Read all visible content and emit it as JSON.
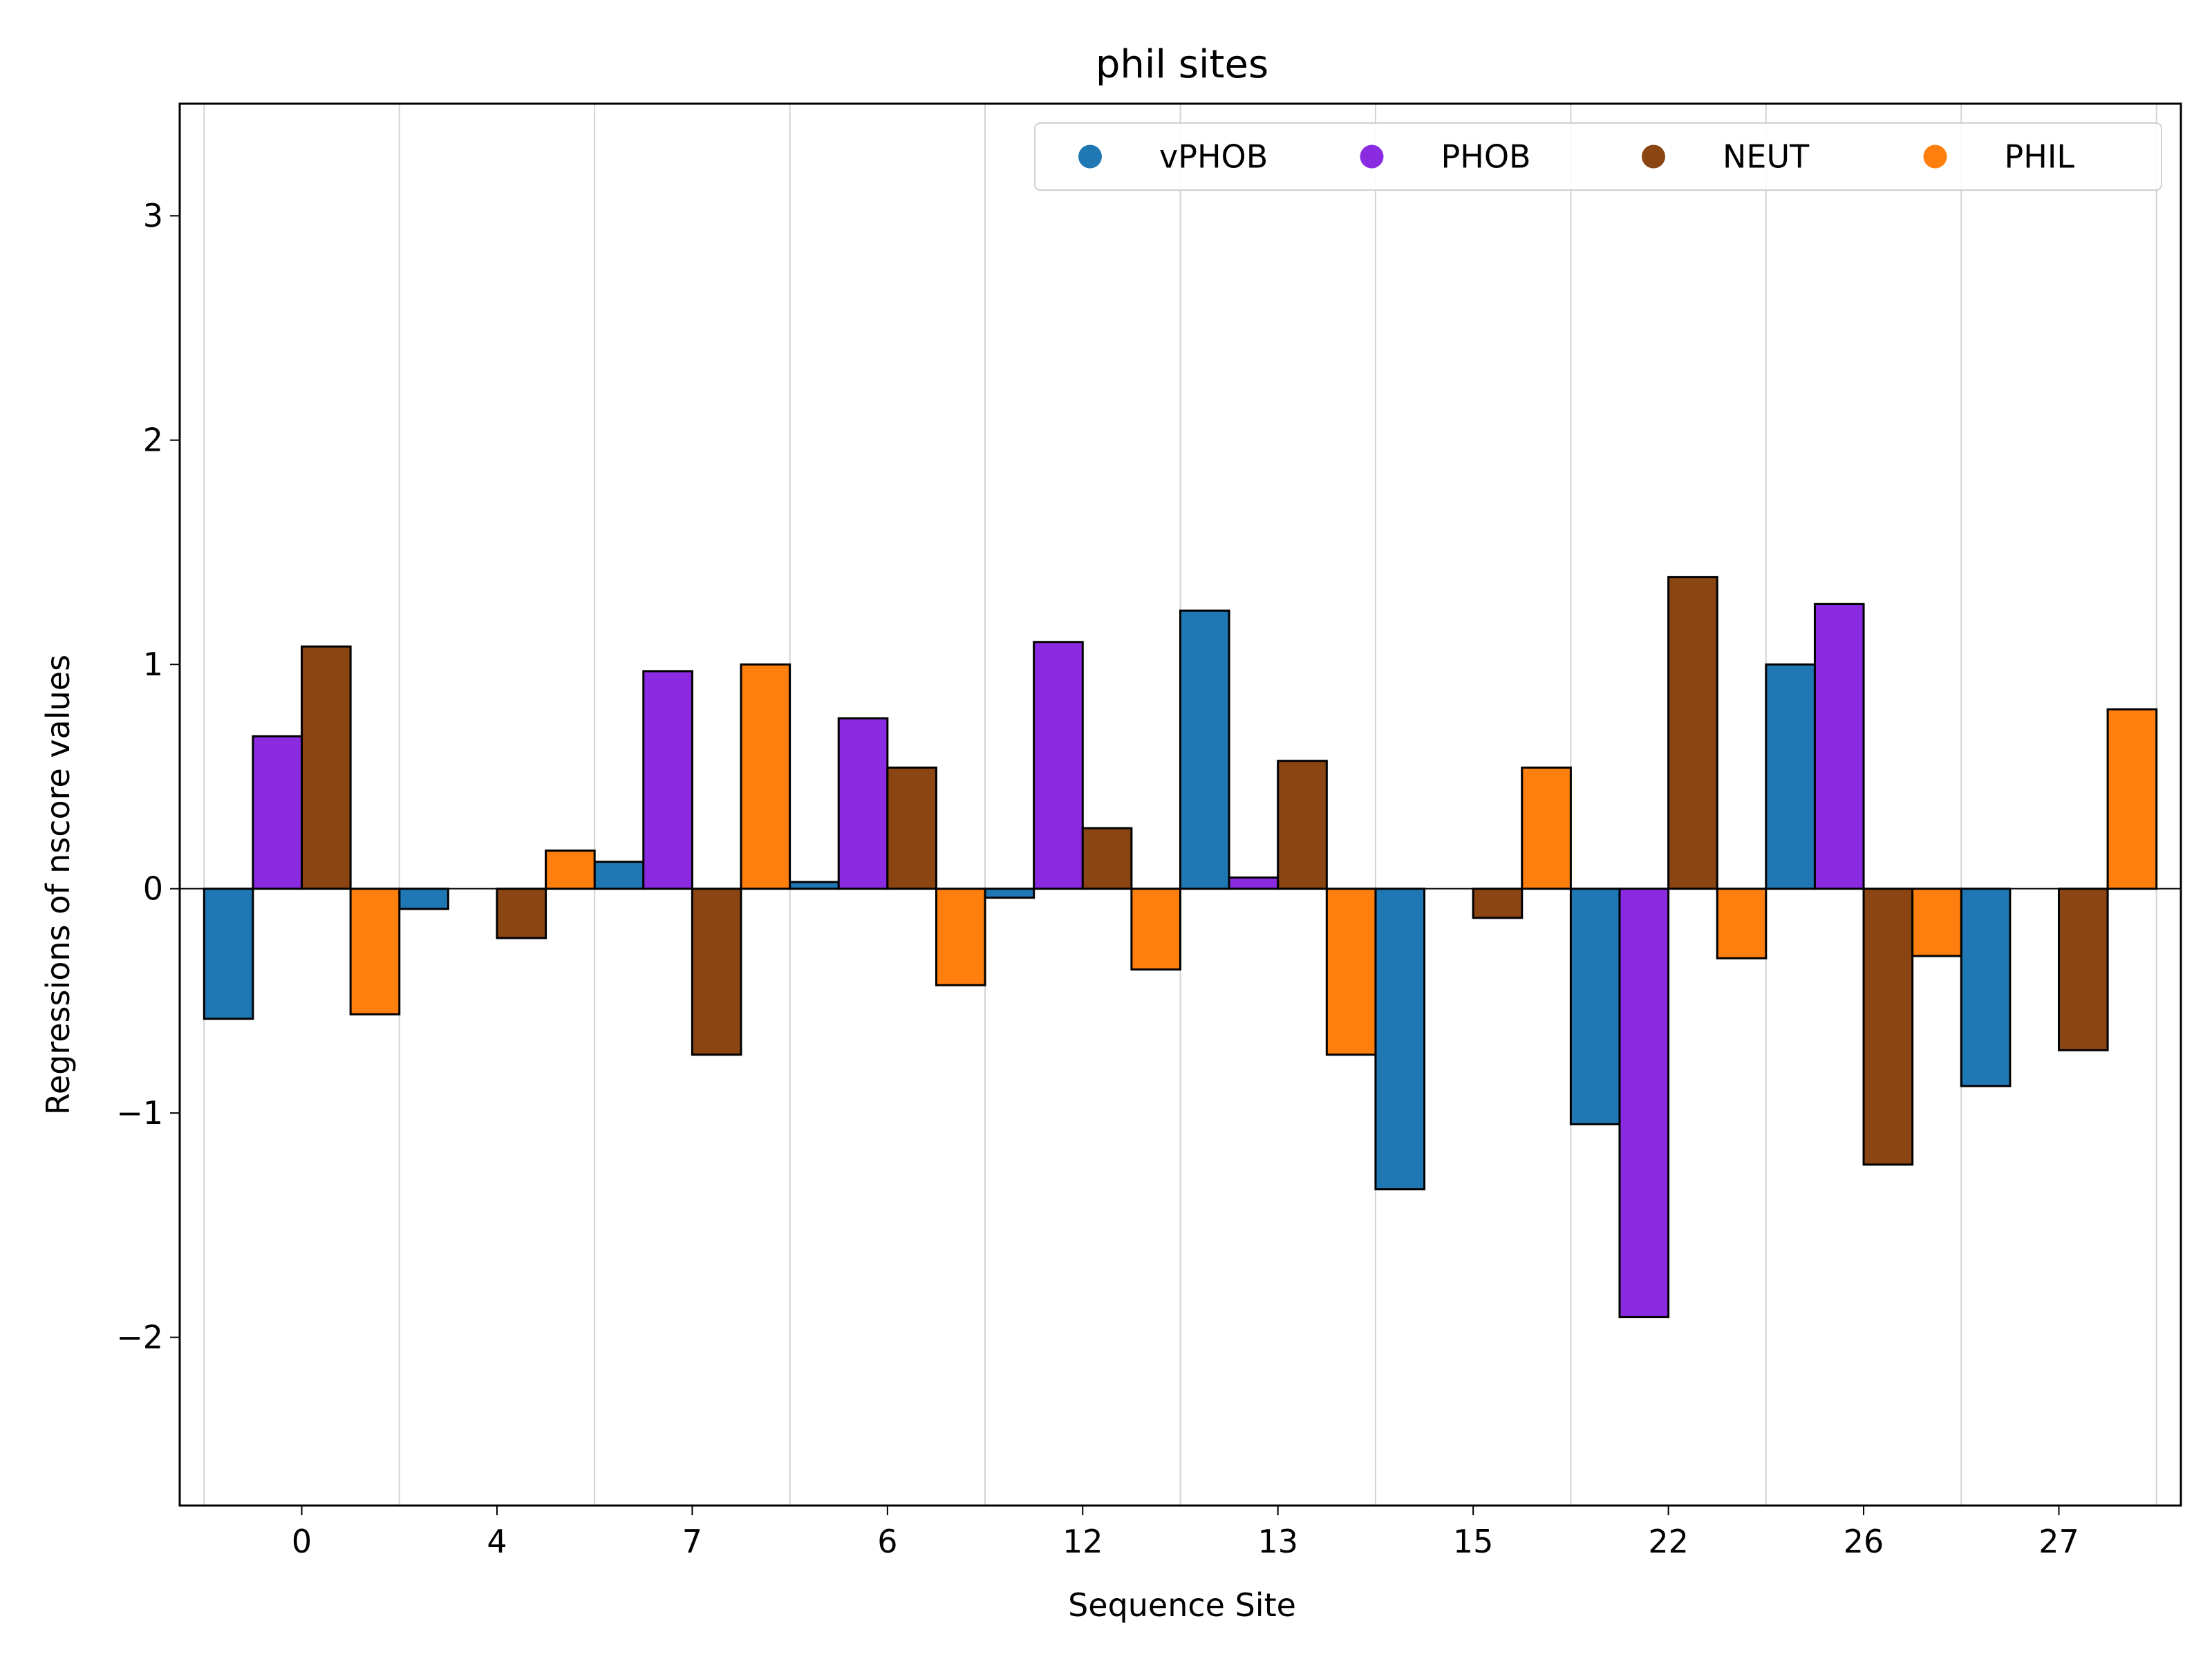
{
  "chart_data": {
    "type": "bar",
    "title": "phil sites",
    "xlabel": "Sequence Site",
    "ylabel": "Regressions of nscore values",
    "categories": [
      "0",
      "4",
      "7",
      "6",
      "12",
      "13",
      "15",
      "22",
      "26",
      "27"
    ],
    "ylim": [
      -2.75,
      3.5
    ],
    "yticks": [
      -2,
      -1,
      0,
      1,
      2,
      3
    ],
    "grid": "vertical",
    "legend_position": "top-right",
    "series": [
      {
        "name": "vPHOB",
        "color": "#1f77b4",
        "values": [
          -0.58,
          -0.09,
          0.12,
          0.03,
          -0.04,
          1.24,
          -1.34,
          -1.05,
          1.0,
          -0.88
        ]
      },
      {
        "name": "PHOB",
        "color": "#8a2be2",
        "values": [
          0.68,
          0.0,
          0.97,
          0.76,
          1.1,
          0.05,
          0.0,
          -1.91,
          1.27,
          0.0
        ]
      },
      {
        "name": "NEUT",
        "color": "#8b4513",
        "values": [
          1.08,
          -0.22,
          -0.74,
          0.54,
          0.27,
          0.57,
          -0.13,
          1.39,
          -1.23,
          -0.72
        ]
      },
      {
        "name": "PHIL",
        "color": "#ff7f0e",
        "values": [
          -0.56,
          0.17,
          1.0,
          -0.43,
          -0.36,
          -0.74,
          0.54,
          -0.31,
          -0.3,
          0.8
        ]
      }
    ]
  }
}
